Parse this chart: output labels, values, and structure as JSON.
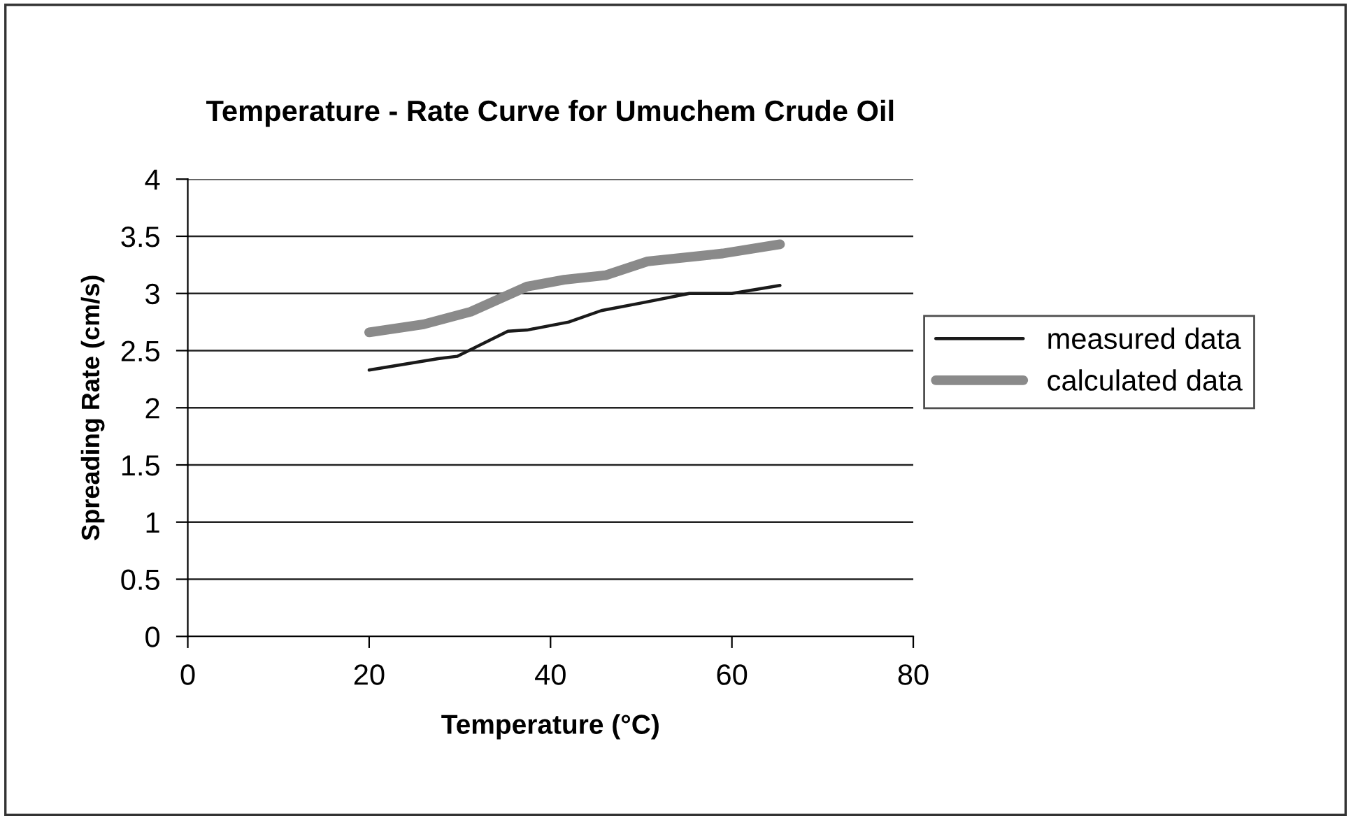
{
  "chart_data": {
    "type": "line",
    "title": "Temperature - Rate Curve for Umuchem Crude Oil",
    "xlabel": "Temperature (°C)",
    "ylabel": "Spreading Rate (cm/s)",
    "xlim": [
      0,
      80
    ],
    "xticks": [
      0,
      20,
      40,
      60,
      80
    ],
    "ylim": [
      0,
      4
    ],
    "yticks": [
      0,
      0.5,
      1,
      1.5,
      2,
      2.5,
      3,
      3.5,
      4
    ],
    "grid": "y",
    "legend": "right",
    "marker": "none",
    "series": [
      {
        "name": "measured data",
        "color": "#1a1a1a",
        "line_style": "solid",
        "x": [
          20,
          27.6,
          29.7,
          35.3,
          37.4,
          42,
          45.6,
          50.2,
          55.3,
          60,
          65.3
        ],
        "values": [
          2.33,
          2.43,
          2.45,
          2.67,
          2.68,
          2.75,
          2.85,
          2.92,
          3.0,
          3.0,
          3.07
        ]
      },
      {
        "name": "calculated data",
        "color": "#8a8a8a",
        "line_style": "solid",
        "x": [
          20,
          26,
          31.2,
          37.4,
          41.5,
          46.1,
          50.7,
          59,
          65.3
        ],
        "values": [
          2.66,
          2.73,
          2.84,
          3.06,
          3.12,
          3.16,
          3.28,
          3.35,
          3.43
        ]
      }
    ]
  }
}
